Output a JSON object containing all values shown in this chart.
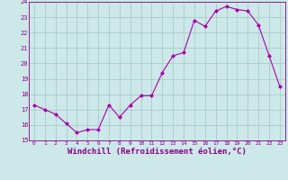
{
  "x": [
    0,
    1,
    2,
    3,
    4,
    5,
    6,
    7,
    8,
    9,
    10,
    11,
    12,
    13,
    14,
    15,
    16,
    17,
    18,
    19,
    20,
    21,
    22,
    23
  ],
  "y": [
    17.3,
    17.0,
    16.7,
    16.1,
    15.5,
    15.7,
    15.7,
    17.3,
    16.5,
    17.3,
    17.9,
    17.9,
    19.4,
    20.5,
    20.7,
    22.8,
    22.4,
    23.4,
    23.7,
    23.5,
    23.4,
    22.5,
    20.5,
    18.5
  ],
  "line_color": "#aa00aa",
  "marker": "D",
  "marker_size": 2.0,
  "bg_color": "#cce8e8",
  "grid_color": "#aacccc",
  "xlabel": "Windchill (Refroidissement éolien,°C)",
  "xlabel_fontsize": 6.5,
  "tick_color": "#880088",
  "ylim": [
    15,
    24
  ],
  "xlim": [
    -0.5,
    23.5
  ],
  "yticks": [
    15,
    16,
    17,
    18,
    19,
    20,
    21,
    22,
    23,
    24
  ],
  "xticks": [
    0,
    1,
    2,
    3,
    4,
    5,
    6,
    7,
    8,
    9,
    10,
    11,
    12,
    13,
    14,
    15,
    16,
    17,
    18,
    19,
    20,
    21,
    22,
    23
  ]
}
